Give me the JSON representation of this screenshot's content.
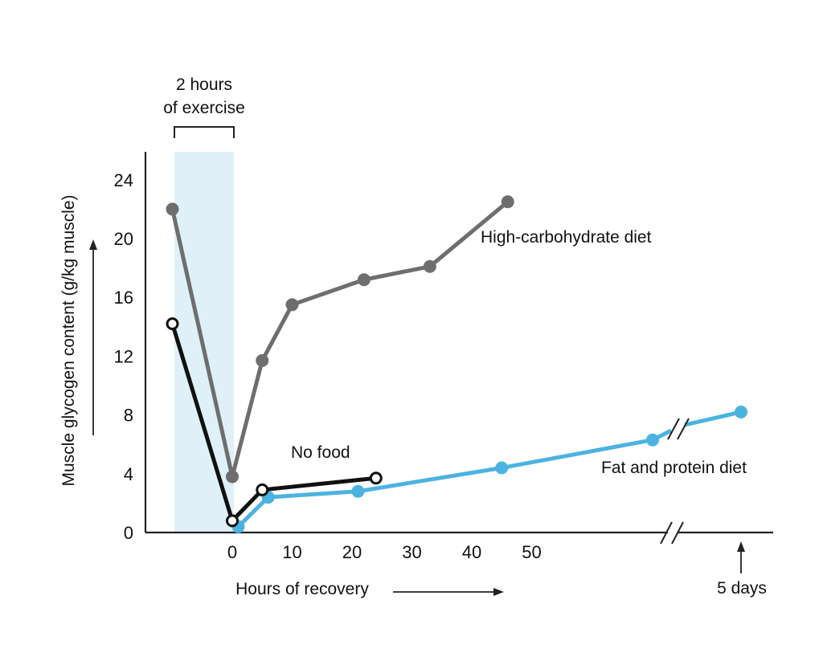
{
  "chart_data": {
    "type": "line",
    "ylabel": "Muscle glycogen content (g/kg muscle)",
    "xlabel": "Hours of recovery",
    "ylim": [
      0,
      26
    ],
    "y_ticks": [
      "0",
      "4",
      "8",
      "12",
      "16",
      "20",
      "24"
    ],
    "x_ticks": [
      "0",
      "10",
      "20",
      "30",
      "40",
      "50"
    ],
    "x_break_label": "5 days",
    "exercise_label": [
      "2 hours",
      "of exercise"
    ],
    "exercise_period_hours": [
      -10,
      0
    ],
    "grid": false,
    "series": [
      {
        "name": "High-carbohydrate diet",
        "color": "#6e6e6e",
        "marker": "filled",
        "x": [
          -10,
          0,
          5,
          10,
          22,
          33,
          46
        ],
        "y": [
          22,
          3.8,
          11.7,
          15.5,
          17.2,
          18.1,
          22.5
        ]
      },
      {
        "name": "Fat and protein diet",
        "color": "#4cb3e0",
        "marker": "filled",
        "x": [
          1,
          6,
          21,
          45,
          "5 days - 12h",
          "5 days"
        ],
        "y": [
          0.4,
          2.4,
          2.8,
          4.4,
          6.3,
          8.2
        ]
      },
      {
        "name": "No food",
        "color": "#111111",
        "marker": "open",
        "x": [
          -10,
          0,
          5,
          24
        ],
        "y": [
          14.2,
          0.8,
          2.9,
          3.7
        ]
      }
    ]
  }
}
